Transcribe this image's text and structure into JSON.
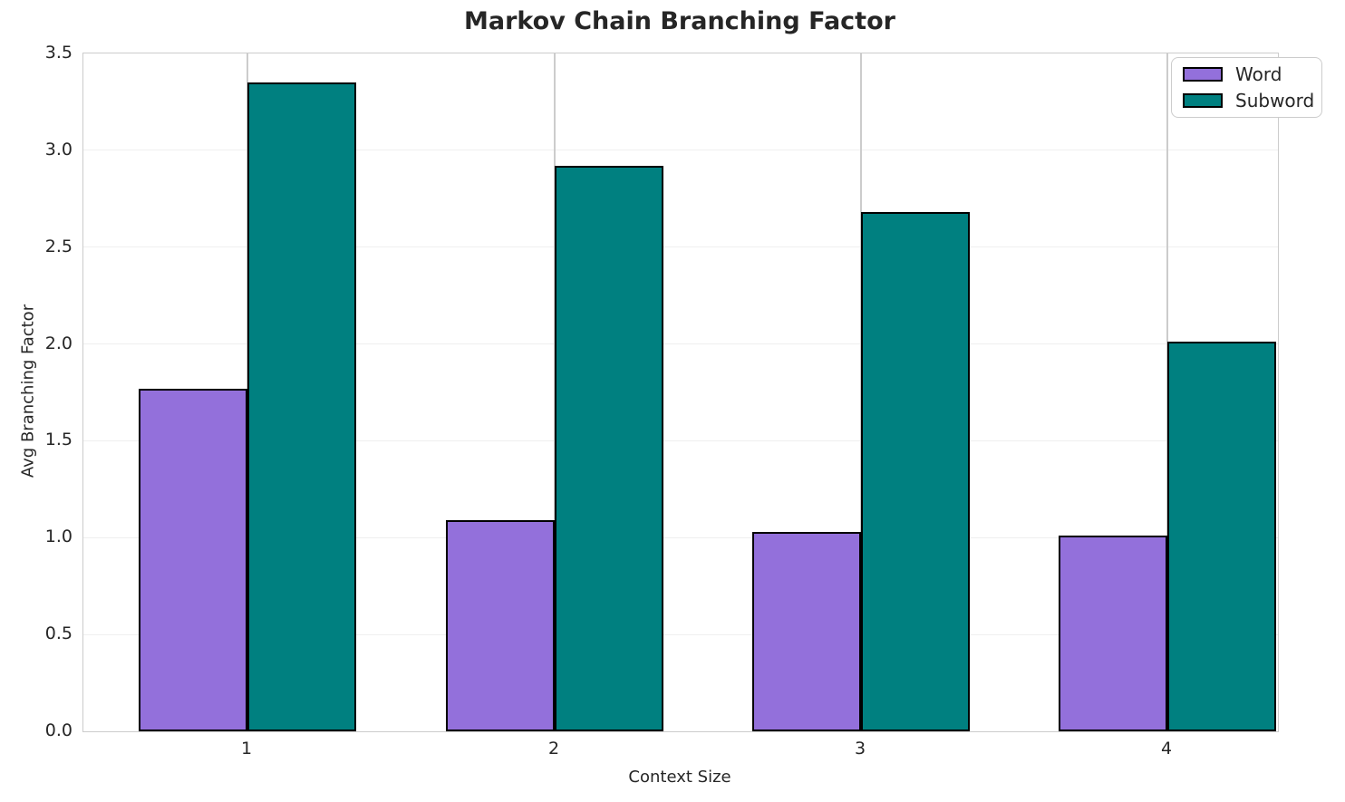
{
  "chart_data": {
    "type": "bar",
    "title": "Markov Chain Branching Factor",
    "xlabel": "Context Size",
    "ylabel": "Avg Branching Factor",
    "categories": [
      "1",
      "2",
      "3",
      "4"
    ],
    "series": [
      {
        "name": "Word",
        "color": "#9370db",
        "values": [
          1.77,
          1.09,
          1.03,
          1.01
        ]
      },
      {
        "name": "Subword",
        "color": "#008080",
        "values": [
          3.35,
          2.92,
          2.68,
          2.01
        ]
      }
    ],
    "ylim": [
      0.0,
      3.5
    ],
    "ytick_labels": [
      "0.0",
      "0.5",
      "1.0",
      "1.5",
      "2.0",
      "2.5",
      "3.0",
      "3.5"
    ],
    "grid": true,
    "legend_position": "upper right",
    "bar_edge_color": "#000000",
    "colors": {
      "text": "#262626",
      "spine": "#cccccc",
      "hgrid": "#efefef",
      "vgrid": "#cccccc",
      "background": "#ffffff"
    }
  }
}
